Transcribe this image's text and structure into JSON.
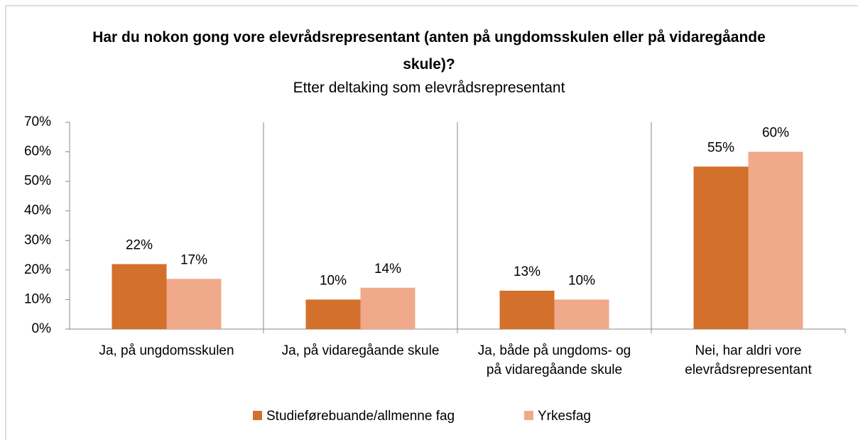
{
  "chart_data": {
    "type": "bar",
    "title": "Har du nokon gong vore elevrådsrepresentant (anten på ungdomsskulen eller på vidaregåande skule)?",
    "subtitle": "Etter deltaking som elevrådsrepresentant",
    "categories": [
      "Ja, på ungdomsskulen",
      "Ja, på vidaregåande skule",
      "Ja, både på ungdoms- og på vidaregåande skule",
      "Nei, har aldri vore elevrådsrepresentant"
    ],
    "series": [
      {
        "name": "Studieførebuande/allmenne fag",
        "color": "#d2702c",
        "values": [
          22,
          10,
          13,
          55
        ],
        "value_labels": [
          "22%",
          "10%",
          "13%",
          "55%"
        ]
      },
      {
        "name": "Yrkesfag",
        "color": "#f0a98a",
        "values": [
          17,
          14,
          10,
          60
        ],
        "value_labels": [
          "17%",
          "14%",
          "10%",
          "60%"
        ]
      }
    ],
    "ylim": [
      0,
      70
    ],
    "yticks": [
      {
        "value": 0,
        "label": "0%"
      },
      {
        "value": 10,
        "label": "10%"
      },
      {
        "value": 20,
        "label": "20%"
      },
      {
        "value": 30,
        "label": "30%"
      },
      {
        "value": 40,
        "label": "40%"
      },
      {
        "value": 50,
        "label": "50%"
      },
      {
        "value": 60,
        "label": "60%"
      },
      {
        "value": 70,
        "label": "70%"
      }
    ],
    "legend": "bottom"
  }
}
